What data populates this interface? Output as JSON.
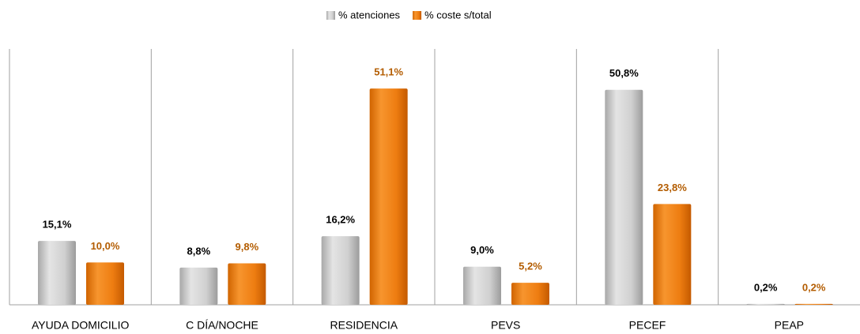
{
  "chart_data": {
    "type": "bar",
    "categories": [
      "AYUDA DOMICILIO",
      "C DÍA/NOCHE",
      "RESIDENCIA",
      "PEVS",
      "PECEF",
      "PEAP"
    ],
    "series": [
      {
        "name": "% atenciones",
        "color": "#c8c8c8",
        "label_color": "#000000",
        "values": [
          15.1,
          8.8,
          16.2,
          9.0,
          50.8,
          0.2
        ],
        "value_labels": [
          "15,1%",
          "8,8%",
          "16,2%",
          "9,0%",
          "50,8%",
          "0,2%"
        ]
      },
      {
        "name": "% coste s/total",
        "color": "#ee7d11",
        "label_color": "#b35c00",
        "values": [
          10.0,
          9.8,
          51.1,
          5.2,
          23.8,
          0.2
        ],
        "value_labels": [
          "10,0%",
          "9,8%",
          "51,1%",
          "5,2%",
          "23,8%",
          "0,2%"
        ]
      }
    ],
    "legend": "top"
  }
}
